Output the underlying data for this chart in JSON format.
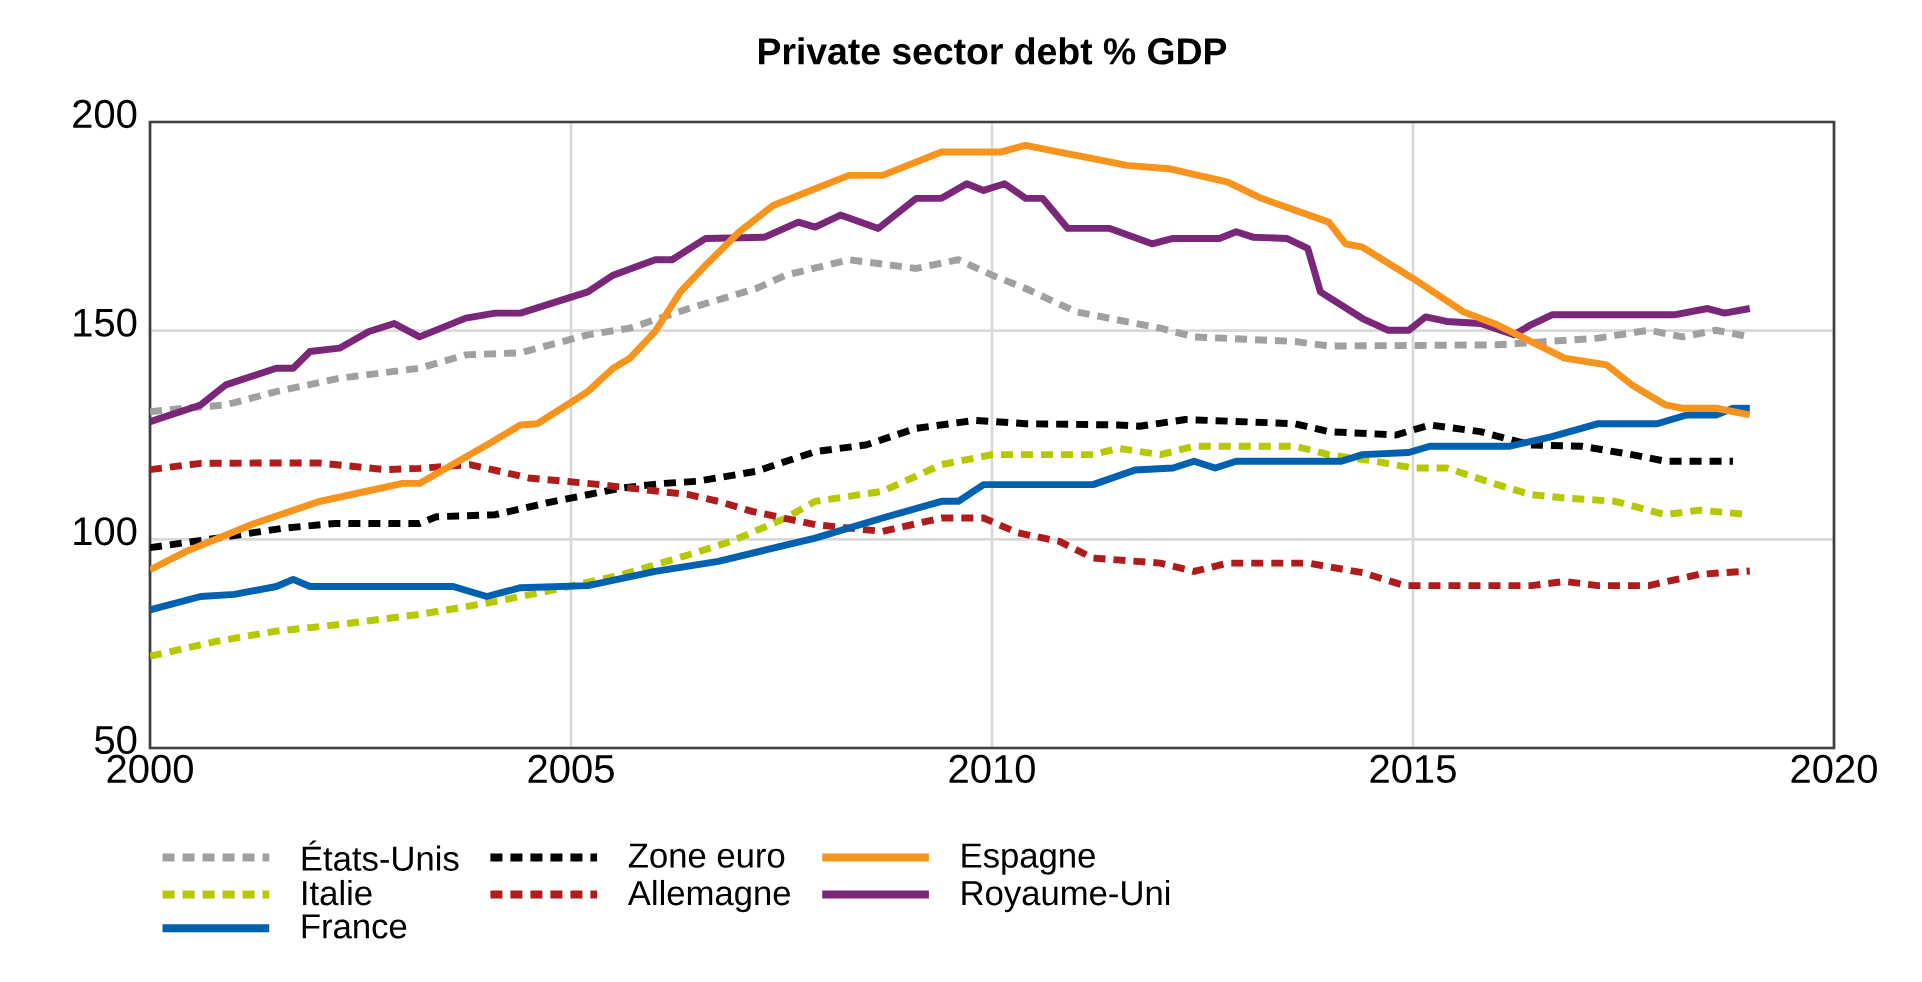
{
  "chart_data": {
    "type": "line",
    "title": "Private sector  debt  % GDP",
    "xlim": [
      2000,
      2020
    ],
    "ylim": [
      50,
      200
    ],
    "xticks": [
      2000,
      2005,
      2010,
      2015,
      2020
    ],
    "yticks": [
      50,
      100,
      150,
      200
    ],
    "grid": true,
    "legend": "bottom",
    "marker": "none",
    "series": [
      {
        "name": "États-Unis",
        "color": "#a0a0a0",
        "line_style": "dashed",
        "x": [
          2000,
          2000.4,
          2000.9,
          2001.5,
          2002.25,
          2003.2,
          2003.75,
          2004.4,
          2005.2,
          2005.7,
          2006.4,
          2007.2,
          2007.55,
          2008.3,
          2009.1,
          2009.6,
          2010,
          2010.4,
          2011,
          2012,
          2012.4,
          2013.6,
          2014,
          2016,
          2017.2,
          2017.8,
          2018.2,
          2018.6,
          2019
        ],
        "values": [
          130.6,
          131.4,
          132.2,
          135.4,
          138.6,
          141,
          144.2,
          144.7,
          149,
          150.6,
          155.3,
          160.1,
          163.3,
          167,
          164.9,
          167,
          163.3,
          160.1,
          154.5,
          150.6,
          148.5,
          147.4,
          146.3,
          146.6,
          148.2,
          150.1,
          148.5,
          150.1,
          148.5
        ]
      },
      {
        "name": "Italie",
        "color": "#b5c800",
        "line_style": "dashed",
        "x": [
          2000,
          2000.8,
          2001.5,
          2002.25,
          2003.2,
          2004,
          2004.8,
          2005.6,
          2006.4,
          2006.9,
          2007.55,
          2007.9,
          2008.7,
          2009.4,
          2010,
          2011.2,
          2011.5,
          2012,
          2012.4,
          2013.6,
          2014,
          2014.55,
          2015,
          2015.4,
          2016,
          2016.4,
          2016.8,
          2017.4,
          2018,
          2018.4,
          2019
        ],
        "values": [
          72,
          75.6,
          78,
          79.6,
          82,
          84.7,
          87.9,
          91.5,
          96.3,
          99.5,
          105.1,
          109.1,
          111.5,
          117.9,
          120.3,
          120.3,
          121.8,
          120.3,
          122.3,
          122.3,
          120.3,
          118.7,
          117.1,
          117.1,
          113.1,
          110.7,
          109.9,
          109.1,
          105.9,
          107,
          105.9
        ]
      },
      {
        "name": "Royaume-Uni",
        "color": "#7b2779",
        "line_style": "solid",
        "x": [
          2000,
          2000.6,
          2000.9,
          2001.5,
          2001.7,
          2001.9,
          2002.25,
          2002.6,
          2002.9,
          2003.2,
          2003.75,
          2004.1,
          2004.4,
          2005.2,
          2005.5,
          2006,
          2006.2,
          2006.6,
          2007.3,
          2007.7,
          2007.9,
          2008.2,
          2008.65,
          2009.1,
          2009.4,
          2009.7,
          2009.9,
          2010.15,
          2010.4,
          2010.6,
          2010.9,
          2011.4,
          2011.9,
          2012.15,
          2012.7,
          2012.9,
          2013.1,
          2013.5,
          2013.75,
          2013.9,
          2014.4,
          2014.7,
          2014.95,
          2015.15,
          2015.4,
          2015.8,
          2016.2,
          2016.4,
          2016.65,
          2017.2,
          2018.1,
          2018.5,
          2018.7,
          2019
        ],
        "values": [
          128.2,
          132.2,
          137,
          141,
          141,
          145,
          145.8,
          149.8,
          151.7,
          148.5,
          153,
          154.2,
          154.2,
          159.3,
          163.3,
          167,
          167,
          172.1,
          172.4,
          176,
          174.8,
          177.7,
          174.5,
          181.7,
          181.7,
          185.2,
          183.6,
          185.2,
          181.7,
          181.7,
          174.5,
          174.5,
          170.8,
          172.1,
          172.1,
          173.7,
          172.4,
          172.1,
          169.7,
          159.3,
          152.9,
          150.1,
          150.1,
          153.3,
          152.2,
          151.7,
          149,
          151.4,
          153.8,
          153.8,
          153.8,
          155.3,
          154.2,
          155.3
        ]
      },
      {
        "name": "Zone euro",
        "color": "#000000",
        "line_style": "dashed",
        "x": [
          2000,
          2000.8,
          2001.6,
          2002.2,
          2003.2,
          2003.4,
          2004.1,
          2004.8,
          2005.6,
          2006.1,
          2006.5,
          2007.2,
          2007.9,
          2008.5,
          2009.1,
          2009.8,
          2010.4,
          2011.5,
          2011.75,
          2012.3,
          2013.6,
          2014,
          2014.8,
          2015.2,
          2015.8,
          2016.4,
          2017,
          2017.6,
          2018,
          2018.8
        ],
        "values": [
          98,
          100.3,
          102.7,
          103.8,
          103.8,
          105.4,
          105.9,
          109.1,
          112.3,
          113.4,
          113.9,
          116.3,
          121,
          122.6,
          126.6,
          128.5,
          127.7,
          127.4,
          127.1,
          128.7,
          127.7,
          125.8,
          125,
          127.4,
          125.8,
          122.6,
          122.3,
          120.3,
          118.7,
          118.7
        ]
      },
      {
        "name": "Allemagne",
        "color": "#b01c1c",
        "line_style": "dashed",
        "x": [
          2000,
          2000.6,
          2001.6,
          2002,
          2002.8,
          2003.2,
          2003.8,
          2004.5,
          2005.2,
          2006.4,
          2006.75,
          2007.15,
          2007.9,
          2008.7,
          2009.4,
          2009.9,
          2010.3,
          2010.8,
          2011.2,
          2012,
          2012.4,
          2012.8,
          2013.75,
          2014.4,
          2014.9,
          2016.4,
          2016.8,
          2017.2,
          2017.8,
          2018.4,
          2019
        ],
        "values": [
          116.7,
          118.2,
          118.3,
          118.3,
          116.7,
          117,
          117.9,
          114.7,
          113.4,
          110.7,
          109.1,
          106.7,
          103.5,
          101.9,
          105.1,
          105.1,
          101.6,
          99.5,
          95.5,
          94.3,
          92.3,
          94.3,
          94.3,
          92,
          88.9,
          88.9,
          89.9,
          88.9,
          88.9,
          91.6,
          92.4
        ]
      },
      {
        "name": "France",
        "color": "#0061b0",
        "line_style": "solid",
        "x": [
          2000,
          2000.6,
          2001,
          2001.5,
          2001.7,
          2001.9,
          2003.6,
          2004,
          2004.4,
          2005.2,
          2006,
          2006.75,
          2007.3,
          2007.9,
          2008.7,
          2009.4,
          2009.6,
          2009.9,
          2011.2,
          2011.7,
          2012.15,
          2012.4,
          2012.65,
          2012.9,
          2014.15,
          2014.4,
          2014.95,
          2015.2,
          2016.15,
          2016.65,
          2017.2,
          2017.9,
          2018.25,
          2018.6,
          2018.8,
          2019
        ],
        "values": [
          83.1,
          86.3,
          86.8,
          88.7,
          90.4,
          88.7,
          88.7,
          86.3,
          88.4,
          88.9,
          92.3,
          94.7,
          97.4,
          100.3,
          105.1,
          109.1,
          109.1,
          113.1,
          113.1,
          116.6,
          117.1,
          118.7,
          117.1,
          118.7,
          118.7,
          120.3,
          120.8,
          122.3,
          122.3,
          124.6,
          127.7,
          127.7,
          129.8,
          129.8,
          131.4,
          131.4
        ]
      },
      {
        "name": "Espagne",
        "color": "#f7941d",
        "line_style": "solid",
        "x": [
          2000,
          2000.43,
          2001.2,
          2002,
          2003,
          2003.2,
          2004,
          2004.4,
          2004.6,
          2005.2,
          2005.5,
          2005.7,
          2006,
          2006.3,
          2006.6,
          2007,
          2007.4,
          2007.9,
          2008.3,
          2008.7,
          2009.4,
          2010.1,
          2010.4,
          2010.8,
          2011.2,
          2011.6,
          2012.1,
          2012.8,
          2013.2,
          2014,
          2014.2,
          2014.4,
          2015,
          2015.6,
          2016,
          2016.4,
          2016.8,
          2017.3,
          2017.6,
          2018,
          2018.2,
          2018.6,
          2019
        ],
        "values": [
          92.7,
          97.1,
          103.5,
          109,
          113.4,
          113.4,
          122.6,
          127.4,
          127.7,
          135.4,
          141,
          143.4,
          149.8,
          159.3,
          165.7,
          173.7,
          180,
          184,
          187.2,
          187.2,
          192.8,
          192.8,
          194.4,
          192.8,
          191.2,
          189.6,
          188.8,
          185.6,
          181.7,
          176,
          170.8,
          170,
          162.5,
          154.5,
          151.4,
          147.4,
          143.4,
          141.8,
          137,
          132.2,
          131.4,
          131.4,
          129.8
        ]
      }
    ]
  }
}
